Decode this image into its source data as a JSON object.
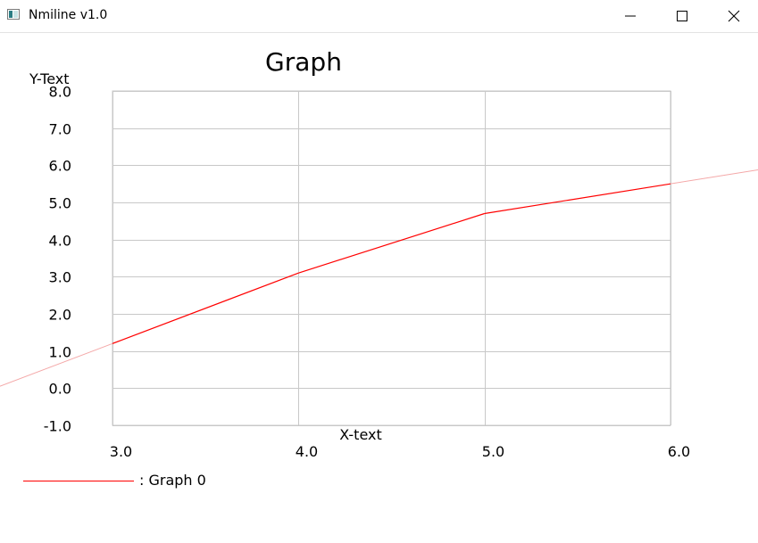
{
  "window": {
    "title": "Nmiline v1.0",
    "controls": [
      "minimize-icon",
      "maximize-icon",
      "close-icon"
    ]
  },
  "chart_data": {
    "type": "line",
    "title": "Graph",
    "xlabel": "X-text",
    "ylabel": "Y-Text",
    "xlim": [
      3.0,
      6.0
    ],
    "ylim": [
      -1.0,
      8.0
    ],
    "x_ticks": [
      "3.0",
      "4.0",
      "5.0",
      "6.0"
    ],
    "y_ticks": [
      "8.0",
      "7.0",
      "6.0",
      "5.0",
      "4.0",
      "3.0",
      "2.0",
      "1.0",
      "0.0",
      "-1.0"
    ],
    "grid": true,
    "series": [
      {
        "name": "Graph 0",
        "color": "#ff0000",
        "x": [
          3.0,
          4.0,
          5.0,
          6.0
        ],
        "y": [
          1.2,
          3.1,
          4.7,
          5.5
        ],
        "extends_beyond_plot": true
      }
    ],
    "legend": {
      "placement": "bottom-left",
      "label": ": Graph 0"
    }
  }
}
